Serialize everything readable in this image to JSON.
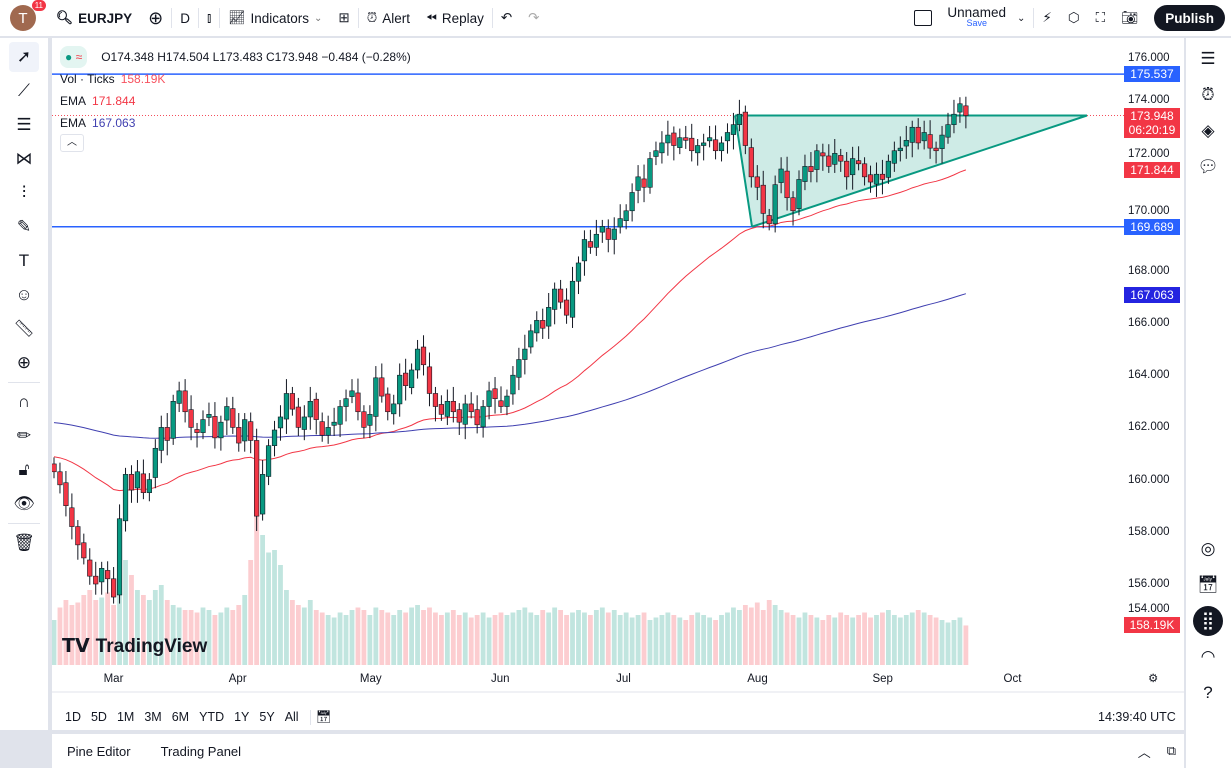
{
  "header": {
    "avatar_letter": "T",
    "notifications": "11",
    "symbol": "EURJPY",
    "interval": "D",
    "indicators": "Indicators",
    "alert": "Alert",
    "replay": "Replay",
    "layout_name": "Unnamed",
    "save": "Save",
    "publish": "Publish"
  },
  "legend": {
    "ohlc": "O174.348 H174.504 L173.483 C173.948 −0.484 (−0.28%)",
    "vol_label": "Vol · Ticks",
    "vol_value": "158.19K",
    "ema1_label": "EMA",
    "ema1_value": "171.844",
    "ema2_label": "EMA",
    "ema2_value": "167.063"
  },
  "colors": {
    "up": "#089981",
    "down": "#f23645",
    "ema_fast": "#f23645",
    "ema_slow": "#3f3fb0",
    "hline": "#2962ff",
    "triangle": "#089981"
  },
  "bottom": {
    "timeframes": [
      "1D",
      "5D",
      "1M",
      "3M",
      "6M",
      "YTD",
      "1Y",
      "5Y",
      "All"
    ],
    "clock": "14:39:40 UTC",
    "pine": "Pine Editor",
    "panel": "Trading Panel"
  },
  "watermark": "TradingView",
  "chart_data": {
    "type": "candlestick",
    "symbol": "EURJPY",
    "interval": "D",
    "price_ticks": [
      "176.000",
      "174.000",
      "172.000",
      "170.000",
      "168.000",
      "166.000",
      "164.000",
      "162.000",
      "160.000",
      "158.000",
      "156.000",
      "154.000"
    ],
    "ylim": [
      153.5,
      176.9
    ],
    "month_labels": [
      {
        "label": "Mar",
        "bar": 10
      },
      {
        "label": "Apr",
        "bar": 31
      },
      {
        "label": "May",
        "bar": 53
      },
      {
        "label": "Jun",
        "bar": 75
      },
      {
        "label": "Jul",
        "bar": 96
      },
      {
        "label": "Aug",
        "bar": 118
      },
      {
        "label": "Sep",
        "bar": 139
      },
      {
        "label": "Oct",
        "bar": 161
      }
    ],
    "closes": [
      160.3,
      159.8,
      159.0,
      158.2,
      157.5,
      157.0,
      156.3,
      156.0,
      156.6,
      156.2,
      155.5,
      158.5,
      160.2,
      159.6,
      160.3,
      159.5,
      160.0,
      161.2,
      162.0,
      161.5,
      163.0,
      163.4,
      162.6,
      162.0,
      161.8,
      162.3,
      162.5,
      161.6,
      162.2,
      162.8,
      162.0,
      161.4,
      162.3,
      161.5,
      158.6,
      160.2,
      161.3,
      161.9,
      162.4,
      163.3,
      162.7,
      162.0,
      162.4,
      163.0,
      162.3,
      161.7,
      162.0,
      162.2,
      162.8,
      163.1,
      163.4,
      162.6,
      162.0,
      162.5,
      163.9,
      163.2,
      162.6,
      162.9,
      164.0,
      163.6,
      164.2,
      165.0,
      164.4,
      163.3,
      162.8,
      162.5,
      163.0,
      162.6,
      162.2,
      162.9,
      162.6,
      162.1,
      162.8,
      163.4,
      163.1,
      162.8,
      163.2,
      164.0,
      164.6,
      165.0,
      165.7,
      166.1,
      165.8,
      166.6,
      167.3,
      166.8,
      166.3,
      167.6,
      168.3,
      169.2,
      168.9,
      169.4,
      169.7,
      169.2,
      169.6,
      170.0,
      170.3,
      171.0,
      171.6,
      171.2,
      172.3,
      172.6,
      172.9,
      173.2,
      172.8,
      173.1,
      173.0,
      172.6,
      172.8,
      172.9,
      173.1,
      172.6,
      172.9,
      173.3,
      173.6,
      174.0,
      172.8,
      171.6,
      171.2,
      170.2,
      169.8,
      171.3,
      171.9,
      170.8,
      170.3,
      171.5,
      172.0,
      171.8,
      172.6,
      172.4,
      172.0,
      172.5,
      172.2,
      171.6,
      172.3,
      172.1,
      171.6,
      171.4,
      171.7,
      171.5,
      172.2,
      172.6,
      172.7,
      173.0,
      173.5,
      172.9,
      173.3,
      172.7,
      172.6,
      173.2,
      173.6,
      174.0,
      174.4,
      173.948
    ],
    "volume_k": [
      180,
      230,
      260,
      240,
      250,
      280,
      300,
      260,
      270,
      290,
      240,
      380,
      420,
      360,
      300,
      280,
      260,
      300,
      320,
      260,
      240,
      230,
      220,
      220,
      210,
      230,
      220,
      200,
      210,
      230,
      220,
      240,
      280,
      420,
      600,
      520,
      450,
      460,
      400,
      300,
      260,
      240,
      230,
      260,
      220,
      210,
      200,
      190,
      210,
      200,
      220,
      230,
      220,
      200,
      230,
      220,
      210,
      200,
      220,
      210,
      230,
      240,
      220,
      230,
      210,
      200,
      210,
      220,
      200,
      210,
      190,
      200,
      210,
      190,
      200,
      210,
      200,
      210,
      220,
      230,
      210,
      200,
      220,
      210,
      230,
      220,
      200,
      210,
      220,
      210,
      200,
      220,
      230,
      210,
      220,
      200,
      210,
      190,
      200,
      210,
      180,
      190,
      200,
      210,
      200,
      190,
      180,
      200,
      210,
      200,
      190,
      180,
      200,
      210,
      230,
      220,
      240,
      230,
      250,
      220,
      260,
      240,
      220,
      210,
      200,
      190,
      210,
      200,
      190,
      180,
      200,
      190,
      210,
      200,
      190,
      200,
      210,
      190,
      200,
      210,
      220,
      200,
      190,
      200,
      210,
      220,
      210,
      200,
      190,
      180,
      170,
      180,
      190,
      158.19
    ],
    "price_labels": [
      {
        "value": "175.537",
        "color": "#2962ff"
      },
      {
        "value": "173.948",
        "sub": "06:20:19",
        "color": "#f23645"
      },
      {
        "value": "171.844",
        "color": "#f23645"
      },
      {
        "value": "169.689",
        "color": "#2962ff"
      },
      {
        "value": "167.063",
        "color": "#2424e0"
      },
      {
        "value": "158.19K",
        "color": "#f23645"
      }
    ],
    "horizontal_lines": [
      175.537,
      169.689
    ],
    "ascending_triangle": {
      "resistance": 173.95,
      "support_start": 169.689
    }
  }
}
